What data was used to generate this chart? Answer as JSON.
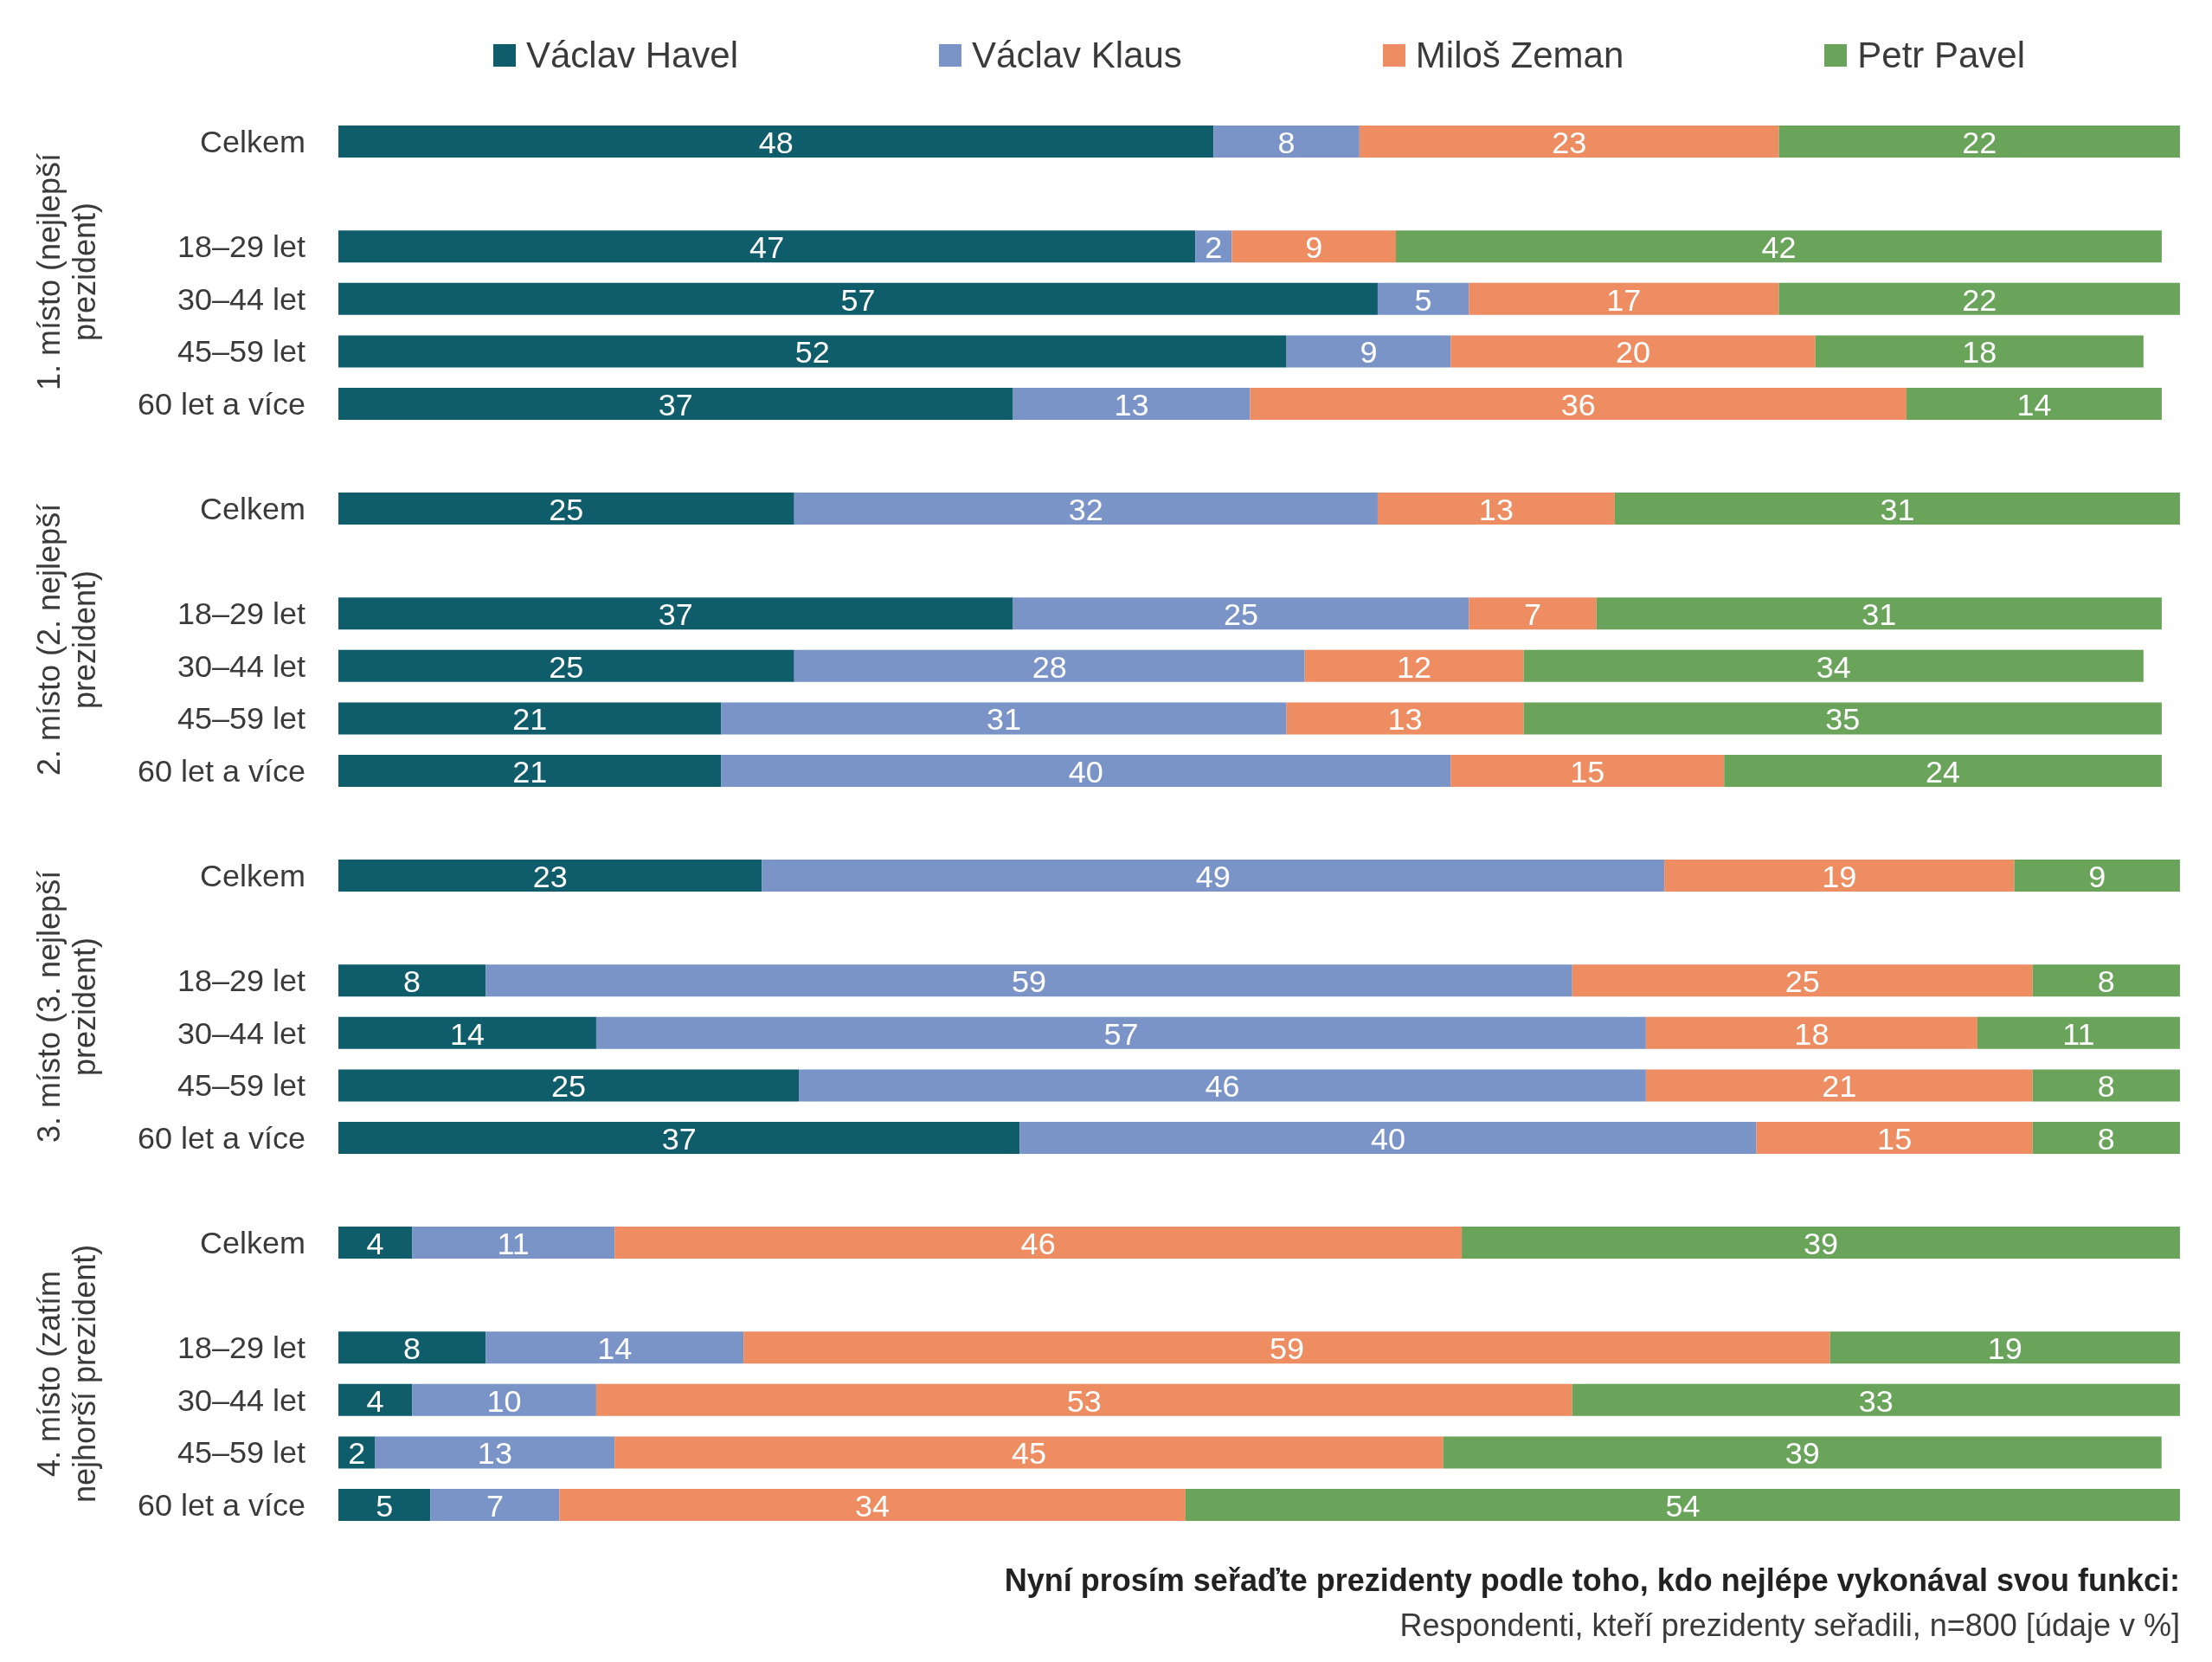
{
  "chart_data": [
    {
      "type": "bar",
      "orientation": "horizontal",
      "stacked": true,
      "data_labels": true,
      "tick_labels": "y",
      "legend": "top",
      "ylabel": "1. místo (nejlepší prezident)",
      "categories": [
        "Celkem",
        null,
        "18–29 let",
        "30–44 let",
        "45–59 let",
        "60 let a více"
      ],
      "series": [
        {
          "name": "Václav Havel",
          "color": "#0f5c6b",
          "values": [
            48,
            null,
            47,
            57,
            52,
            37
          ]
        },
        {
          "name": "Václav Klaus",
          "color": "#7b94c8",
          "values": [
            8,
            null,
            2,
            5,
            9,
            13
          ]
        },
        {
          "name": "Miloš Zeman",
          "color": "#ee8c62",
          "values": [
            23,
            null,
            9,
            17,
            20,
            36
          ]
        },
        {
          "name": "Petr Pavel",
          "color": "#6aa45b",
          "values": [
            22,
            null,
            42,
            22,
            18,
            14
          ]
        }
      ]
    },
    {
      "type": "bar",
      "orientation": "horizontal",
      "stacked": true,
      "data_labels": true,
      "tick_labels": "y",
      "ylabel": "2. místo (2. nejlepší prezident)",
      "categories": [
        "Celkem",
        null,
        "18–29 let",
        "30–44 let",
        "45–59 let",
        "60 let a více"
      ],
      "series": [
        {
          "color": "#0f5c6b",
          "values": [
            25,
            null,
            37,
            25,
            21,
            21
          ]
        },
        {
          "color": "#7b94c8",
          "values": [
            32,
            null,
            25,
            28,
            31,
            40
          ]
        },
        {
          "color": "#ee8c62",
          "values": [
            13,
            null,
            7,
            12,
            13,
            15
          ]
        },
        {
          "color": "#6aa45b",
          "values": [
            31,
            null,
            31,
            34,
            35,
            24
          ]
        }
      ]
    },
    {
      "type": "bar",
      "orientation": "horizontal",
      "stacked": true,
      "data_labels": true,
      "tick_labels": "y",
      "ylabel": "3. místo (3. nejlepší prezident)",
      "categories": [
        "Celkem",
        null,
        "18–29 let",
        "30–44 let",
        "45–59 let",
        "60 let a více"
      ],
      "series": [
        {
          "color": "#0f5c6b",
          "values": [
            23,
            null,
            8,
            14,
            25,
            37
          ]
        },
        {
          "color": "#7b94c8",
          "values": [
            49,
            null,
            59,
            57,
            46,
            40
          ]
        },
        {
          "color": "#ee8c62",
          "values": [
            19,
            null,
            25,
            18,
            21,
            15
          ]
        },
        {
          "color": "#6aa45b",
          "values": [
            9,
            null,
            8,
            11,
            8,
            8
          ]
        }
      ]
    },
    {
      "type": "bar",
      "orientation": "horizontal",
      "stacked": true,
      "data_labels": true,
      "tick_labels": "y",
      "ylabel": "4. místo (zatím nejhorší prezident)",
      "title": "Nyní prosím seřaďte prezidenty podle toho, kdo nejlépe vykonával svou funkci:",
      "annotations": [
        "Respondenti, kteří prezidenty seřadili, n=800 [údaje v %]"
      ],
      "categories": [
        "Celkem",
        null,
        "18–29 let",
        "30–44 let",
        "45–59 let",
        "60 let a více"
      ],
      "series": [
        {
          "color": "#0f5c6b",
          "values": [
            4,
            null,
            8,
            4,
            2,
            5
          ]
        },
        {
          "color": "#7b94c8",
          "values": [
            11,
            null,
            14,
            10,
            13,
            7
          ]
        },
        {
          "color": "#ee8c62",
          "values": [
            46,
            null,
            59,
            53,
            45,
            34
          ]
        },
        {
          "color": "#6aa45b",
          "values": [
            39,
            null,
            19,
            33,
            39,
            54
          ]
        }
      ]
    }
  ]
}
